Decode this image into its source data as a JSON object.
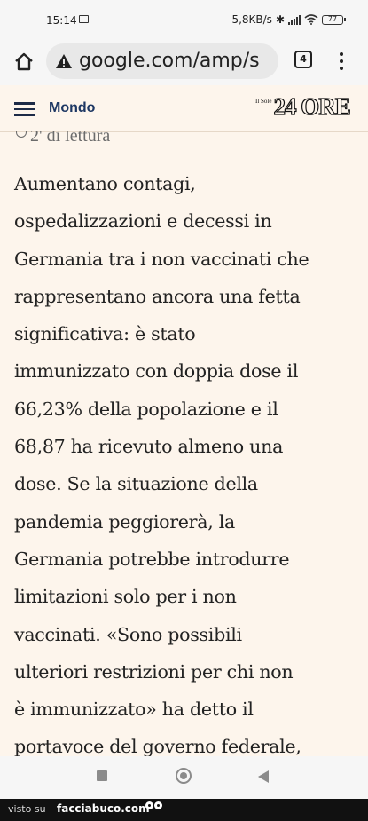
{
  "status_bar": {
    "time": "15:14",
    "network_speed": "5,8KB/s",
    "battery_level": "77"
  },
  "browser": {
    "url": "google.com/amp/s",
    "tab_count": "4"
  },
  "site_header": {
    "section": "Mondo",
    "logo_small": "Il Sole",
    "logo_big": "24 ORE"
  },
  "article": {
    "reading_time": "2' di lettura",
    "body": "Aumentano contagi,\nospedalizzazioni e decessi in\nGermania tra i non vaccinati che\nrappresentano ancora una fetta\nsignificativa: è stato\nimmunizzato con doppia dose il\n66,23% della popolazione e il\n68,87 ha ricevuto almeno una\ndose. Se la situazione della\npandemia peggiorerà, la\nGermania potrebbe introdurre\nlimitazioni solo per i non\nvaccinati. «Sono possibili\nulteriori restrizioni per chi non\nè immunizzato» ha detto il\nportavoce del governo federale,"
  },
  "watermark": {
    "prefix": "visto su",
    "site": "facciabuco.com"
  }
}
